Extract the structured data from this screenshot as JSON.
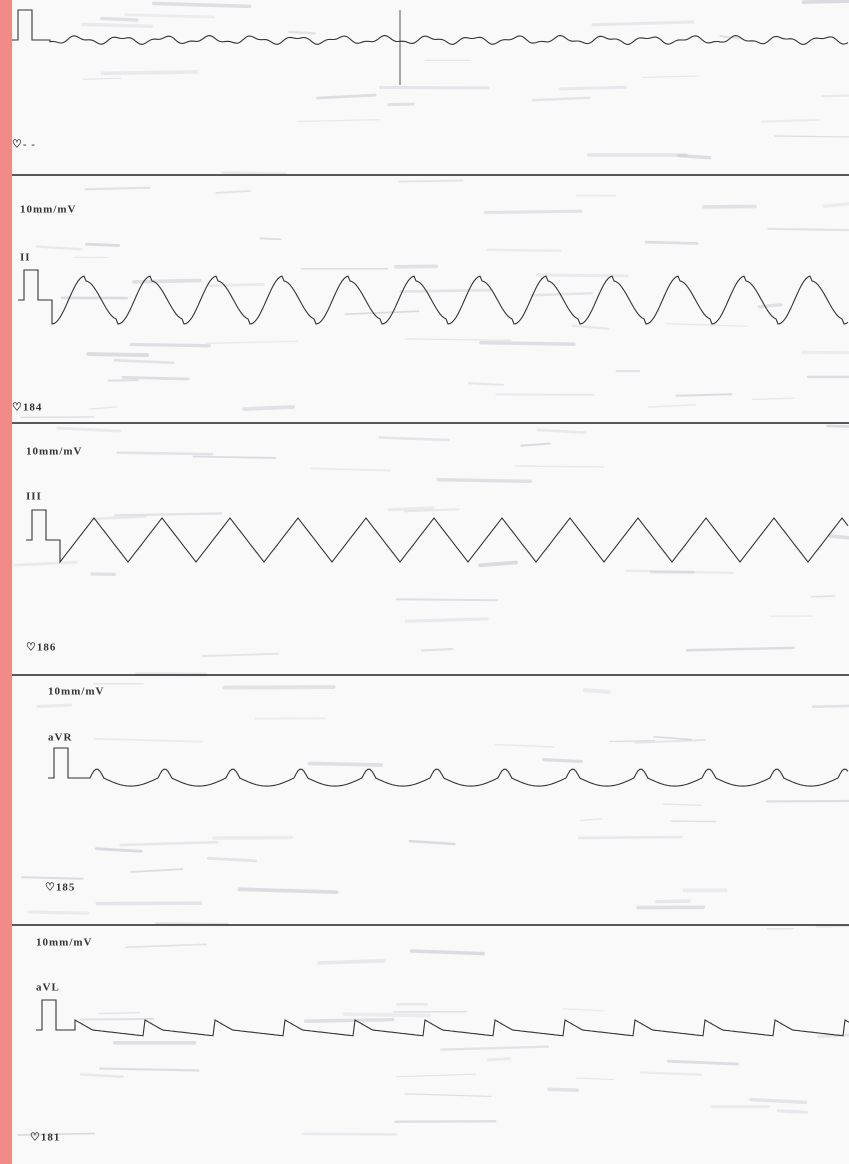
{
  "strips": [
    {
      "heart_rate": "♡- -"
    },
    {
      "scale": "10mm/mV",
      "lead": "II",
      "heart_rate": "♡184"
    },
    {
      "scale": "10mm/mV",
      "lead": "III",
      "heart_rate": "♡186"
    },
    {
      "scale": "10mm/mV",
      "lead": "aVR",
      "heart_rate": "♡185"
    },
    {
      "scale": "10mm/mV",
      "lead": "aVL",
      "heart_rate": "♡181"
    }
  ]
}
